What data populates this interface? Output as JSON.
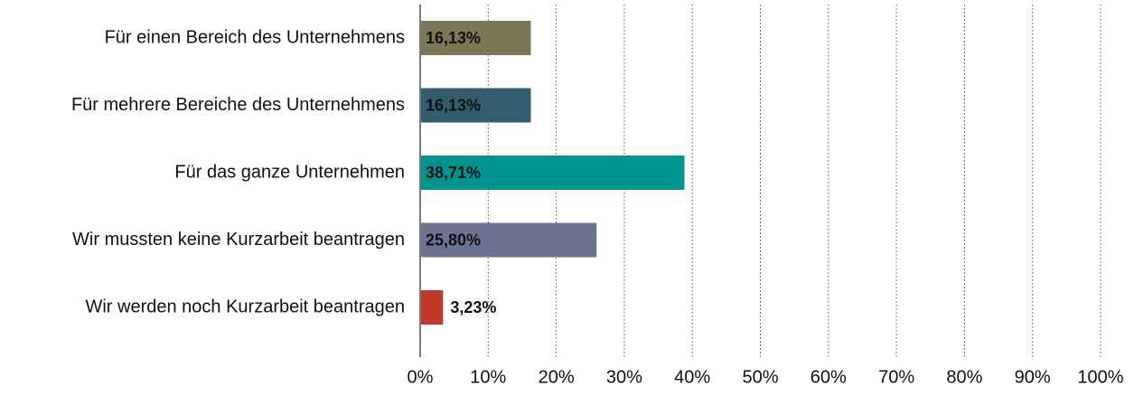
{
  "chart_data": {
    "type": "barh",
    "categories": [
      "Für einen Bereich des Unternehmens",
      "Für mehrere Bereiche des Unternehmens",
      "Für das ganze Unternehmen",
      "Wir mussten keine Kurzarbeit beantragen",
      "Wir werden noch Kurzarbeit beantragen"
    ],
    "values": [
      16.13,
      16.13,
      38.71,
      25.8,
      3.23
    ],
    "value_labels": [
      "16,13%",
      "16,13%",
      "38,71%",
      "25,80%",
      "3,23%"
    ],
    "colors": [
      "#7b7757",
      "#335c6e",
      "#009490",
      "#6d7390",
      "#c0392b"
    ],
    "xlim": [
      0,
      100
    ],
    "xticks": [
      {
        "value": 0,
        "label": "0%"
      },
      {
        "value": 10,
        "label": "10%"
      },
      {
        "value": 20,
        "label": "20%"
      },
      {
        "value": 30,
        "label": "30%"
      },
      {
        "value": 40,
        "label": "40%"
      },
      {
        "value": 50,
        "label": "50%"
      },
      {
        "value": 60,
        "label": "60%"
      },
      {
        "value": 70,
        "label": "70%"
      },
      {
        "value": 80,
        "label": "80%"
      },
      {
        "value": 90,
        "label": "90%"
      },
      {
        "value": 100,
        "label": "100%"
      }
    ],
    "grid": true
  }
}
